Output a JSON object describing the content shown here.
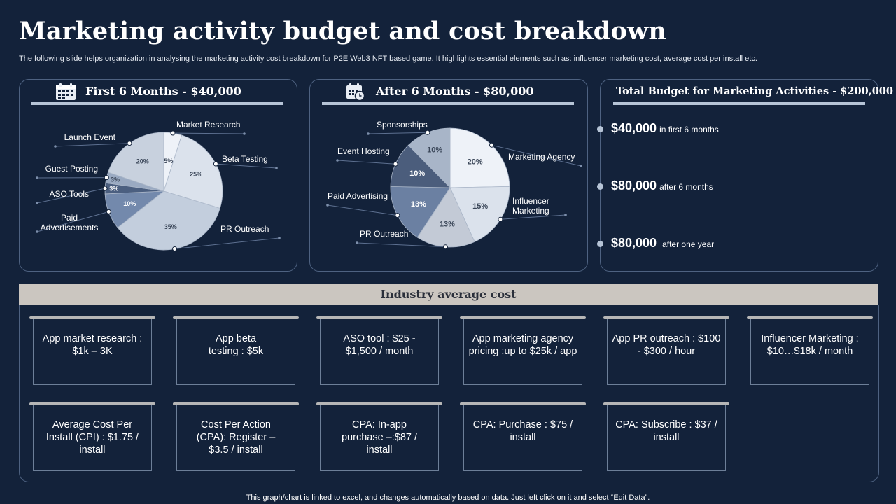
{
  "title": "Marketing activity budget and cost breakdown",
  "subtitle": "The following slide helps organization in analysing the marketing activity cost breakdown for P2E Web3 NFT based game. It highlights essential elements such as: influencer marketing cost, average cost per install etc.",
  "colors": {
    "background": "#13223a",
    "panel_border": "#4e6281",
    "accent_line": "#b6c4d6"
  },
  "panel1": {
    "heading": "First 6 Months - $40,000",
    "icon": "calendar-icon"
  },
  "panel2": {
    "heading": "After 6 Months - $80,000",
    "icon": "calendar-clock-icon"
  },
  "panel3": {
    "heading": "Total Budget for Marketing Activities - $200,000",
    "items": [
      {
        "value": "$40,000",
        "text": "in first 6 months"
      },
      {
        "value": "$80,000",
        "text": "after 6 months"
      },
      {
        "value": "$80,000",
        "text": "after one year"
      }
    ]
  },
  "chart_data": [
    {
      "type": "pie",
      "title": "First 6 Months - $40,000",
      "slices": [
        {
          "label": "Market Research",
          "value": 5,
          "value_label": "5%",
          "color": "#eef2f8"
        },
        {
          "label": "Beta Testing",
          "value": 25,
          "value_label": "25%",
          "color": "#dbe2ec"
        },
        {
          "label": "PR Outreach",
          "value": 35,
          "value_label": "35%",
          "color": "#c3cedd"
        },
        {
          "label": "Paid Advertisements",
          "value": 10,
          "value_label": "10%",
          "color": "#7389ac"
        },
        {
          "label": "ASO Tools",
          "value": 3,
          "value_label": "3%",
          "color": "#4b5f80"
        },
        {
          "label": "Guest Posting",
          "value": 3,
          "value_label": "3%",
          "color": "#9aaac2"
        },
        {
          "label": "Launch Event",
          "value": 20,
          "value_label": "20%",
          "color": "#c8d1de"
        }
      ]
    },
    {
      "type": "pie",
      "title": "After 6 Months - $80,000",
      "slices": [
        {
          "label": "Marketing Agency",
          "value": 20,
          "value_label": "20%",
          "color": "#eef2f8"
        },
        {
          "label": "Influencer Marketing",
          "value": 15,
          "value_label": "15%",
          "color": "#dbe2ec"
        },
        {
          "label": "PR Outreach",
          "value": 13,
          "value_label": "13%",
          "color": "#c3cad6"
        },
        {
          "label": "Paid Advertising",
          "value": 13,
          "value_label": "13%",
          "color": "#6b80a2"
        },
        {
          "label": "Event Hosting",
          "value": 10,
          "value_label": "10%",
          "color": "#4b5d7c"
        },
        {
          "label": "Sponsorships",
          "value": 10,
          "value_label": "10%",
          "color": "#a8b5c8"
        }
      ]
    }
  ],
  "industry": {
    "title": "Industry average cost",
    "cards": [
      "App market research : $1k – 3K",
      "App beta testing : $5k",
      "ASO tool : $25 - $1,500 / month",
      "App marketing agency pricing :up to $25k / app",
      "App PR outreach : $100 - $300 / hour",
      "Influencer Marketing : $10…$18k / month",
      "Average Cost Per Install (CPI) : $1.75 / install",
      "Cost Per Action (CPA): Register – $3.5 / install",
      "CPA: In-app purchase –:$87 / install",
      "CPA: Purchase : $75 / install",
      "CPA: Subscribe : $37 / install"
    ]
  },
  "footer": "This graph/chart is linked to excel, and changes automatically based on data. Just left click on it and select “Edit Data”."
}
